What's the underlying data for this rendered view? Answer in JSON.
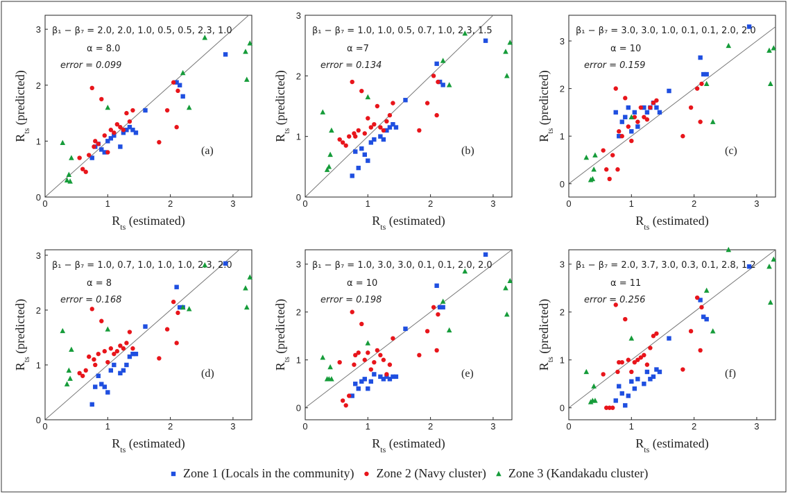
{
  "chart_data": [
    {
      "type": "scatter",
      "beta": "β₁ − β₇ = 2.0, 2.0, 1.0, 0.5, 0.5, 2.3, 1.0",
      "alpha": "α = 8.0",
      "error": "error = 0.099",
      "panel": "(a)",
      "xlabel": [
        "R",
        "ts",
        " (estimated)"
      ],
      "ylabel": [
        "R",
        "ts",
        " (predicted)"
      ],
      "xlim": [
        0,
        3.3
      ],
      "ylim": [
        0,
        3.25
      ],
      "xticks": [
        0,
        1,
        2,
        3
      ],
      "yticks": [
        0,
        1,
        2,
        3
      ],
      "diagonal": true,
      "series": [
        {
          "x": [
            0.75,
            0.8,
            0.85,
            0.9,
            0.95,
            1.0,
            1.05,
            1.1,
            1.2,
            1.25,
            1.3,
            1.35,
            1.4,
            1.45,
            1.6,
            2.1,
            2.15,
            2.2,
            2.88
          ],
          "y": [
            0.7,
            0.9,
            0.95,
            0.85,
            0.8,
            1.0,
            1.05,
            1.1,
            0.9,
            1.15,
            1.2,
            1.25,
            1.2,
            1.15,
            1.55,
            2.05,
            2.0,
            1.8,
            2.55
          ]
        },
        {
          "x": [
            0.55,
            0.6,
            0.65,
            0.7,
            0.75,
            0.78,
            0.8,
            0.85,
            0.9,
            0.95,
            1.0,
            1.05,
            1.1,
            1.15,
            1.2,
            1.25,
            1.3,
            1.35,
            1.4,
            1.82,
            1.95,
            2.05,
            2.1,
            2.12
          ],
          "y": [
            0.7,
            0.5,
            0.45,
            0.75,
            1.95,
            0.9,
            1.0,
            0.95,
            1.75,
            1.1,
            0.8,
            1.2,
            1.15,
            1.3,
            1.25,
            1.2,
            1.5,
            1.35,
            1.55,
            0.98,
            1.55,
            2.05,
            1.25,
            1.9
          ]
        },
        {
          "x": [
            0.28,
            0.35,
            0.38,
            0.4,
            0.42,
            1.0,
            2.2,
            2.3,
            2.55,
            3.2,
            3.22,
            3.27
          ],
          "y": [
            0.97,
            0.3,
            0.4,
            0.28,
            0.7,
            1.6,
            2.22,
            1.6,
            2.85,
            2.6,
            2.1,
            2.75
          ]
        }
      ]
    },
    {
      "type": "scatter",
      "beta": "β₁ − β₇ = 1.0, 1.0, 0.5, 0.7, 1.0, 2.3, 1.5",
      "alpha": "α =7",
      "error": "error = 0.134",
      "panel": "(b)",
      "xlabel": [
        "R",
        "ts",
        " (estimated)"
      ],
      "ylabel": [
        "R",
        "ts",
        " (predicted)"
      ],
      "xlim": [
        0,
        3.3
      ],
      "ylim": [
        0,
        3.0
      ],
      "xticks": [
        0,
        1,
        2,
        3
      ],
      "yticks": [
        0,
        1,
        2,
        3
      ],
      "diagonal": true,
      "series": [
        {
          "x": [
            0.75,
            0.8,
            0.85,
            0.9,
            0.95,
            1.0,
            1.05,
            1.1,
            1.2,
            1.25,
            1.3,
            1.35,
            1.4,
            1.45,
            1.6,
            2.1,
            2.15,
            2.2,
            2.88
          ],
          "y": [
            0.35,
            0.75,
            0.48,
            0.8,
            0.7,
            0.6,
            0.9,
            0.95,
            1.0,
            0.95,
            1.1,
            1.15,
            1.2,
            1.15,
            1.6,
            2.2,
            1.9,
            1.85,
            2.58
          ]
        },
        {
          "x": [
            0.55,
            0.6,
            0.65,
            0.7,
            0.75,
            0.78,
            0.8,
            0.85,
            0.9,
            0.95,
            1.0,
            1.05,
            1.1,
            1.15,
            1.2,
            1.25,
            1.3,
            1.35,
            1.4,
            1.82,
            1.95,
            2.05,
            2.1,
            2.12
          ],
          "y": [
            0.95,
            0.9,
            0.85,
            1.0,
            1.9,
            1.05,
            1.0,
            1.1,
            1.75,
            1.05,
            1.3,
            1.15,
            1.2,
            1.5,
            1.15,
            1.1,
            1.25,
            1.35,
            1.55,
            1.1,
            1.55,
            2.0,
            1.35,
            1.9
          ]
        },
        {
          "x": [
            0.28,
            0.35,
            0.38,
            0.4,
            0.42,
            1.0,
            2.2,
            2.3,
            2.55,
            3.2,
            3.22,
            3.27
          ],
          "y": [
            1.4,
            0.45,
            0.5,
            0.7,
            1.1,
            1.65,
            2.25,
            1.85,
            2.7,
            2.4,
            2.0,
            2.55
          ]
        }
      ]
    },
    {
      "type": "scatter",
      "beta": "β₁ − β₇ = 3.0, 3.0, 1.0, 0.1, 0.1, 2.0, 2.0",
      "alpha": "α = 10",
      "error": "error = 0.159",
      "panel": "(c)",
      "xlabel": [
        "R",
        "ts",
        " (estimated)"
      ],
      "ylabel": [
        "R",
        "ts",
        " (predicted)"
      ],
      "xlim": [
        0,
        3.3
      ],
      "ylim": [
        -0.28,
        3.54
      ],
      "xticks": [
        0,
        1,
        2,
        3
      ],
      "yticks": [
        0,
        1,
        2,
        3
      ],
      "diagonal": true,
      "series": [
        {
          "x": [
            0.75,
            0.8,
            0.85,
            0.9,
            0.95,
            1.0,
            1.05,
            1.1,
            1.2,
            1.25,
            1.3,
            1.35,
            1.4,
            1.45,
            1.6,
            2.1,
            2.15,
            2.2,
            2.88
          ],
          "y": [
            1.5,
            1.0,
            1.3,
            1.4,
            1.6,
            1.1,
            1.5,
            1.2,
            1.6,
            1.5,
            1.6,
            1.7,
            1.6,
            1.5,
            1.95,
            2.65,
            2.3,
            2.3,
            3.3
          ]
        },
        {
          "x": [
            0.55,
            0.6,
            0.65,
            0.7,
            0.75,
            0.78,
            0.8,
            0.85,
            0.9,
            0.95,
            1.0,
            1.05,
            1.1,
            1.15,
            1.2,
            1.25,
            1.3,
            1.35,
            1.4,
            1.82,
            1.95,
            2.05,
            2.1,
            2.12
          ],
          "y": [
            0.7,
            0.3,
            0.1,
            0.6,
            2.0,
            0.3,
            1.1,
            1.0,
            1.8,
            1.2,
            0.9,
            1.4,
            1.3,
            1.6,
            1.4,
            1.35,
            1.6,
            1.7,
            1.75,
            1.0,
            1.6,
            2.0,
            1.3,
            2.1
          ]
        },
        {
          "x": [
            0.28,
            0.35,
            0.38,
            0.4,
            0.42,
            1.0,
            2.2,
            2.3,
            2.55,
            3.2,
            3.22,
            3.27
          ],
          "y": [
            0.55,
            0.08,
            0.1,
            0.3,
            0.6,
            1.4,
            2.1,
            1.3,
            2.9,
            2.8,
            2.1,
            2.85
          ]
        }
      ]
    },
    {
      "type": "scatter",
      "beta": "β₁ − β₇ = 1.0, 0.7, 1.0, 1.0, 1.0, 2.3, 2.0",
      "alpha": "α = 8",
      "error": "error = 0.168",
      "panel": "(d)",
      "xlabel": [
        "R",
        "ts",
        " (estimated)"
      ],
      "ylabel": [
        "R",
        "ts",
        " (predicted)"
      ],
      "xlim": [
        0,
        3.3
      ],
      "ylim": [
        0,
        3.1
      ],
      "xticks": [
        0,
        1,
        2,
        3
      ],
      "yticks": [
        0,
        1,
        2,
        3
      ],
      "diagonal": true,
      "series": [
        {
          "x": [
            0.75,
            0.8,
            0.85,
            0.9,
            0.95,
            1.0,
            1.05,
            1.1,
            1.2,
            1.25,
            1.3,
            1.35,
            1.4,
            1.45,
            1.6,
            2.1,
            2.15,
            2.2,
            2.88
          ],
          "y": [
            0.28,
            0.6,
            0.8,
            0.65,
            0.6,
            0.5,
            0.9,
            1.0,
            0.85,
            0.9,
            1.0,
            1.15,
            1.2,
            1.2,
            1.7,
            2.42,
            2.05,
            2.05,
            2.85
          ]
        },
        {
          "x": [
            0.55,
            0.6,
            0.65,
            0.7,
            0.75,
            0.78,
            0.8,
            0.85,
            0.9,
            0.95,
            1.0,
            1.05,
            1.1,
            1.15,
            1.2,
            1.25,
            1.3,
            1.35,
            1.4,
            1.82,
            1.95,
            2.05,
            2.1,
            2.12
          ],
          "y": [
            0.85,
            0.8,
            0.9,
            1.15,
            2.02,
            1.1,
            1.0,
            1.2,
            1.8,
            1.25,
            1.05,
            1.3,
            1.2,
            1.25,
            1.35,
            1.3,
            1.4,
            1.6,
            1.3,
            1.12,
            1.65,
            2.15,
            1.4,
            1.95
          ]
        },
        {
          "x": [
            0.28,
            0.35,
            0.38,
            0.4,
            0.42,
            1.0,
            2.2,
            2.3,
            2.55,
            3.2,
            3.22,
            3.27
          ],
          "y": [
            1.62,
            0.65,
            0.9,
            0.75,
            1.28,
            1.65,
            2.05,
            2.02,
            2.82,
            2.4,
            2.05,
            2.6
          ]
        }
      ]
    },
    {
      "type": "scatter",
      "beta": "β₁ − β₇ = 1.0, 3.0, 3.0, 0.1, 0.1, 2.0, 2.0",
      "alpha": "α = 10",
      "error": "error = 0.198",
      "panel": "(e)",
      "xlabel": [
        "R",
        "ts",
        " (estimated)"
      ],
      "ylabel": [
        "R",
        "ts",
        " (predicted)"
      ],
      "xlim": [
        0,
        3.3
      ],
      "ylim": [
        -0.25,
        3.3
      ],
      "xticks": [
        0,
        1,
        2,
        3
      ],
      "yticks": [
        0,
        1,
        2,
        3
      ],
      "diagonal": true,
      "series": [
        {
          "x": [
            0.75,
            0.8,
            0.85,
            0.9,
            0.95,
            1.0,
            1.05,
            1.1,
            1.2,
            1.25,
            1.3,
            1.35,
            1.4,
            1.45,
            1.6,
            2.1,
            2.15,
            2.2,
            2.88
          ],
          "y": [
            0.25,
            0.5,
            0.4,
            0.55,
            0.6,
            0.4,
            0.55,
            0.7,
            0.65,
            0.6,
            0.65,
            0.6,
            0.65,
            0.65,
            1.65,
            2.55,
            2.1,
            2.1,
            3.2
          ]
        },
        {
          "x": [
            0.55,
            0.6,
            0.65,
            0.7,
            0.75,
            0.78,
            0.8,
            0.85,
            0.9,
            0.95,
            1.0,
            1.05,
            1.1,
            1.15,
            1.2,
            1.25,
            1.3,
            1.35,
            1.4,
            1.82,
            1.95,
            2.05,
            2.1,
            2.12
          ],
          "y": [
            0.95,
            0.15,
            0.05,
            0.25,
            2.0,
            0.9,
            1.1,
            1.15,
            1.75,
            1.0,
            1.15,
            0.8,
            0.95,
            1.2,
            1.1,
            1.0,
            0.7,
            0.9,
            1.45,
            1.1,
            1.6,
            2.1,
            1.2,
            1.95
          ]
        },
        {
          "x": [
            0.28,
            0.35,
            0.38,
            0.4,
            0.42,
            1.0,
            2.2,
            2.3,
            2.55,
            3.2,
            3.22,
            3.27
          ],
          "y": [
            1.05,
            0.6,
            0.6,
            0.85,
            0.6,
            1.35,
            2.22,
            1.62,
            2.85,
            2.5,
            1.95,
            2.65
          ]
        }
      ]
    },
    {
      "type": "scatter",
      "beta": "β₁ − β₇ = 2.0, 3.7, 3.0, 0.3, 0.1, 2.8, 1.2",
      "alpha": "α = 11",
      "error": "error = 0.256",
      "panel": "(f)",
      "xlabel": [
        "R",
        "ts",
        " (estimated)"
      ],
      "ylabel": [
        "R",
        "ts",
        " (predicted)"
      ],
      "xlim": [
        0,
        3.3
      ],
      "ylim": [
        -0.25,
        3.3
      ],
      "xticks": [
        0,
        1,
        2,
        3
      ],
      "yticks": [
        0,
        1,
        2,
        3
      ],
      "diagonal": true,
      "series": [
        {
          "x": [
            0.75,
            0.8,
            0.85,
            0.9,
            0.95,
            1.0,
            1.05,
            1.1,
            1.2,
            1.25,
            1.3,
            1.35,
            1.4,
            1.45,
            1.6,
            2.1,
            2.15,
            2.2,
            2.88
          ],
          "y": [
            0.15,
            0.45,
            0.3,
            0.05,
            0.25,
            0.55,
            0.4,
            0.6,
            0.5,
            0.75,
            0.6,
            0.65,
            0.8,
            0.75,
            1.45,
            2.25,
            1.9,
            1.85,
            2.95
          ]
        },
        {
          "x": [
            0.55,
            0.6,
            0.65,
            0.7,
            0.75,
            0.78,
            0.8,
            0.85,
            0.9,
            0.95,
            1.0,
            1.05,
            1.1,
            1.15,
            1.2,
            1.25,
            1.3,
            1.35,
            1.4,
            1.82,
            1.95,
            2.05,
            2.1,
            2.12
          ],
          "y": [
            0.7,
            0.0,
            0.0,
            0.0,
            2.15,
            0.75,
            0.95,
            0.95,
            1.85,
            1.0,
            0.75,
            0.95,
            1.0,
            1.05,
            1.1,
            0.9,
            1.25,
            1.5,
            1.55,
            0.8,
            1.6,
            2.3,
            1.2,
            2.1
          ]
        },
        {
          "x": [
            0.28,
            0.35,
            0.38,
            0.4,
            0.42,
            1.0,
            2.2,
            2.3,
            2.55,
            3.2,
            3.22,
            3.27
          ],
          "y": [
            0.75,
            0.12,
            0.15,
            0.45,
            0.15,
            1.45,
            2.45,
            1.6,
            3.3,
            2.95,
            2.2,
            3.1
          ]
        }
      ]
    }
  ],
  "legend": [
    {
      "name": "Zone 1 (Locals in the community)",
      "color": "#1f4fe0",
      "marker": "square"
    },
    {
      "name": "Zone 2 (Navy cluster)",
      "color": "#e8151b",
      "marker": "circle"
    },
    {
      "name": "Zone 3 (Kandakadu cluster)",
      "color": "#169c3a",
      "marker": "triangle"
    }
  ]
}
